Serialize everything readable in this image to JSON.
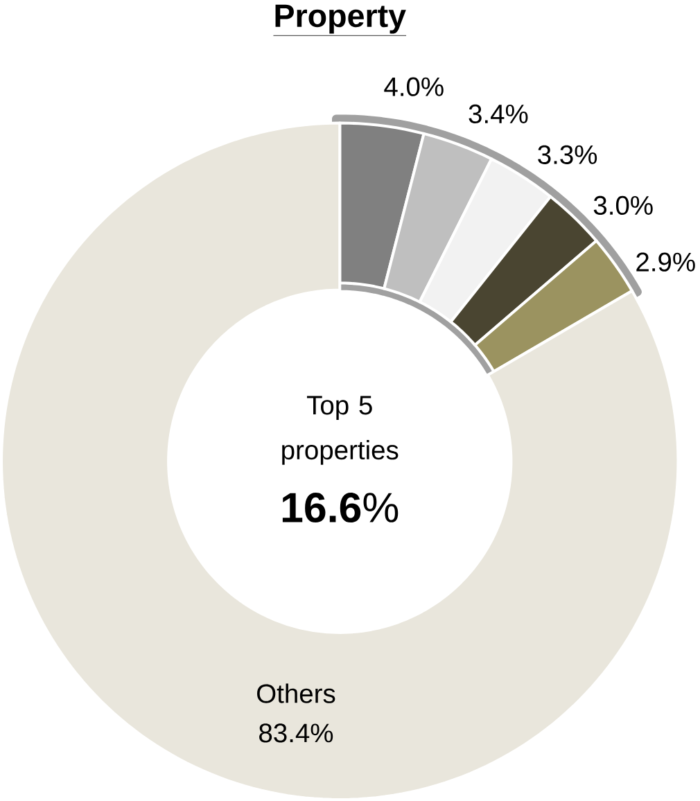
{
  "chart_data": {
    "type": "donut",
    "title": "Property",
    "categories": [
      null,
      null,
      null,
      null,
      null,
      "Others"
    ],
    "values": [
      4.0,
      3.4,
      3.3,
      3.0,
      2.9,
      83.4
    ],
    "colors": [
      "#808080",
      "#bfbfbf",
      "#f2f2f2",
      "#4a4531",
      "#9b9360",
      "#e9e6dc"
    ],
    "value_labels": [
      "4.0%",
      "3.4%",
      "3.3%",
      "3.0%",
      "2.9%",
      "83.4%"
    ],
    "annotations": [
      "Top 5 properties",
      "**16.6**%"
    ]
  }
}
